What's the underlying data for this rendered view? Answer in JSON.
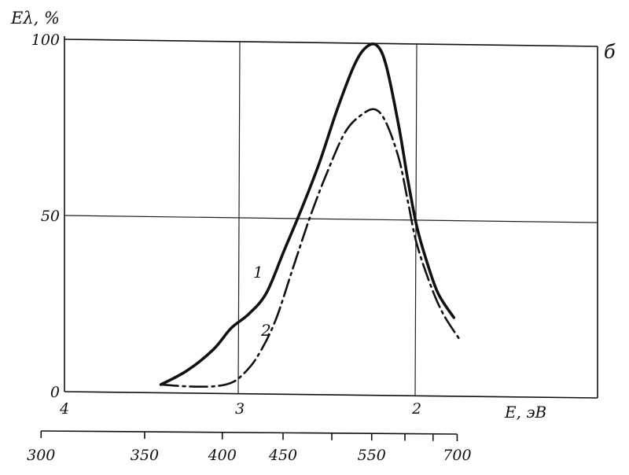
{
  "chart_data": {
    "type": "line",
    "panel_label": "б",
    "ylabel": "Eλ, %",
    "xlabel": "E, эВ",
    "ylim": [
      0,
      100
    ],
    "y_ticks": [
      "0",
      "50",
      "100"
    ],
    "x_energy_ticks": [
      "4",
      "3",
      "2"
    ],
    "x_wavelength_ticks": [
      "300",
      "350",
      "400",
      "450",
      "550",
      "700"
    ],
    "x_wavelength_minor": [
      500,
      600,
      650
    ],
    "grid": true,
    "series": [
      {
        "name": "1",
        "style": "solid",
        "points": [
          [
            3.45,
            2
          ],
          [
            3.3,
            6
          ],
          [
            3.15,
            12
          ],
          [
            3.05,
            18
          ],
          [
            2.95,
            22
          ],
          [
            2.85,
            28
          ],
          [
            2.75,
            40
          ],
          [
            2.65,
            52
          ],
          [
            2.55,
            65
          ],
          [
            2.45,
            80
          ],
          [
            2.35,
            93
          ],
          [
            2.28,
            98
          ],
          [
            2.22,
            98
          ],
          [
            2.17,
            92
          ],
          [
            2.1,
            75
          ],
          [
            2.05,
            60
          ],
          [
            2.0,
            47
          ],
          [
            1.95,
            38
          ],
          [
            1.88,
            28
          ],
          [
            1.79,
            21
          ]
        ]
      },
      {
        "name": "2",
        "style": "dash-dot",
        "points": [
          [
            3.45,
            2
          ],
          [
            3.3,
            1.5
          ],
          [
            3.15,
            1.5
          ],
          [
            3.05,
            2.5
          ],
          [
            2.98,
            5
          ],
          [
            2.9,
            10
          ],
          [
            2.8,
            20
          ],
          [
            2.7,
            35
          ],
          [
            2.6,
            50
          ],
          [
            2.5,
            63
          ],
          [
            2.4,
            74
          ],
          [
            2.3,
            79
          ],
          [
            2.23,
            80
          ],
          [
            2.17,
            76
          ],
          [
            2.1,
            66
          ],
          [
            2.05,
            54
          ],
          [
            2.0,
            42
          ],
          [
            1.92,
            30
          ],
          [
            1.85,
            22
          ],
          [
            1.76,
            15
          ]
        ]
      }
    ]
  }
}
